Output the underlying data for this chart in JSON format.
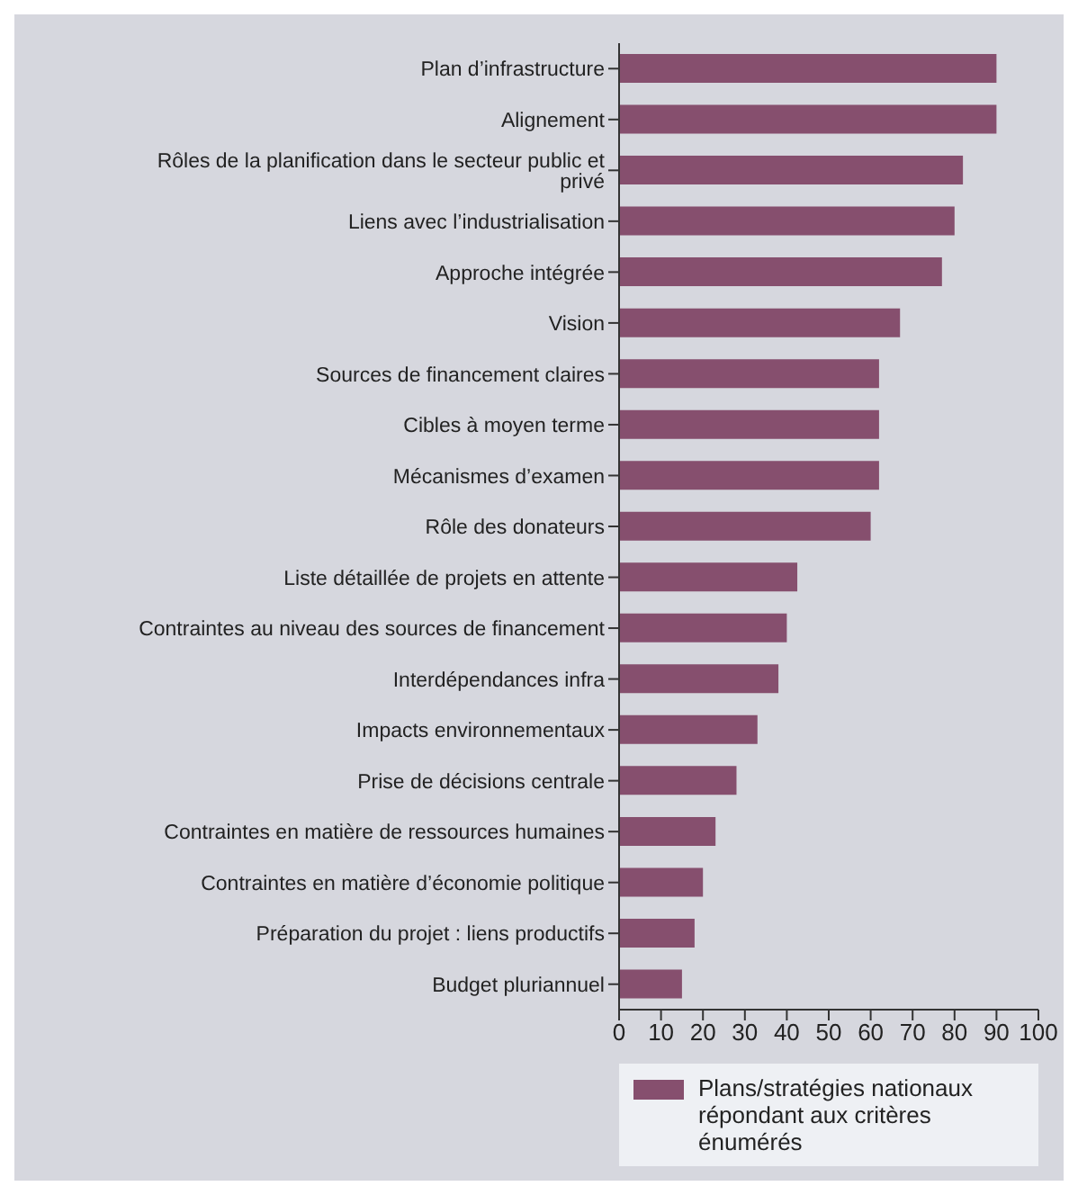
{
  "chart_data": {
    "type": "bar",
    "orientation": "horizontal",
    "categories": [
      "Plan d’infrastructure",
      "Alignement",
      "Rôles de la planification dans le secteur public et privé",
      "Liens avec l’industrialisation",
      "Approche intégrée",
      "Vision",
      "Sources de financement claires",
      "Cibles à moyen terme",
      "Mécanismes d’examen",
      "Rôle des donateurs",
      "Liste détaillée de projets en attente",
      "Contraintes au niveau des sources de financement",
      "Interdépendances infra",
      "Impacts environnementaux",
      "Prise de décisions centrale",
      "Contraintes en matière de ressources humaines",
      "Contraintes en matière d’économie politique",
      "Préparation du projet : liens productifs",
      "Budget pluriannuel"
    ],
    "series": [
      {
        "name": "Plans/stratégies nationaux répondant aux critères énumérés",
        "color": "#864f6e",
        "values": [
          90,
          90,
          82,
          80,
          77,
          67,
          62,
          62,
          62,
          60,
          42.5,
          40,
          38,
          33,
          28,
          23,
          20,
          18,
          15
        ]
      }
    ],
    "xlim": [
      0,
      100
    ],
    "xticks": [
      0,
      10,
      20,
      30,
      40,
      50,
      60,
      70,
      80,
      90,
      100
    ],
    "grid": false,
    "legend": "bottom"
  }
}
